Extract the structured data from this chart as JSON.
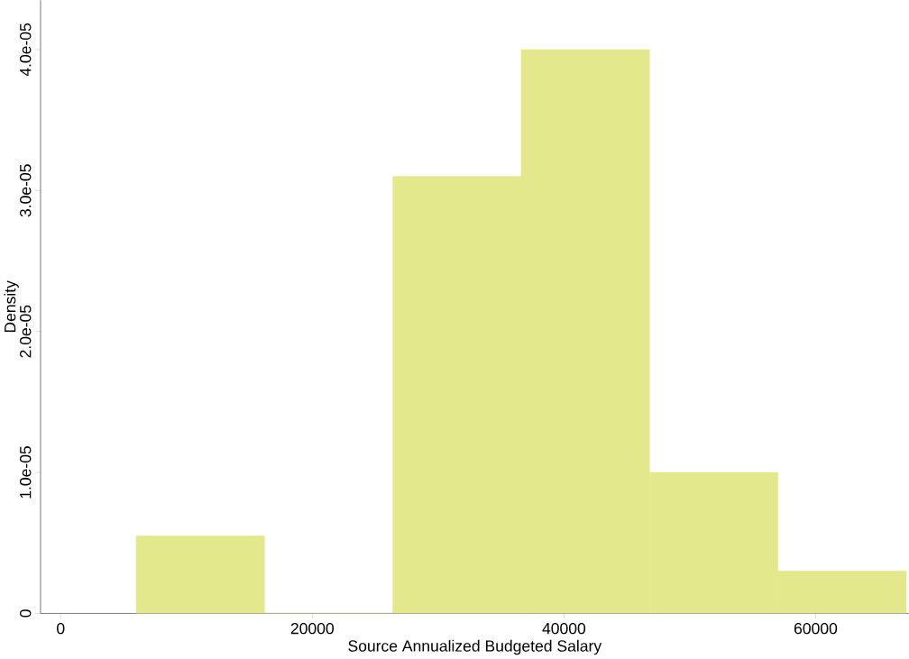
{
  "chart_data": {
    "type": "histogram",
    "xlabel": "Source Annualized Budgeted Salary",
    "ylabel": "Density",
    "bins": [
      6000,
      16200,
      26400,
      36600,
      46800,
      57000,
      67200
    ],
    "values": [
      5.5e-06,
      0,
      3.1e-05,
      4e-05,
      1e-05,
      3e-06
    ],
    "color": "#e4e88c",
    "xlim": [
      -1600,
      67400
    ],
    "ylim": [
      0,
      4.35e-05
    ],
    "xticks": [
      0,
      20000,
      40000,
      60000
    ],
    "yticks": [
      0,
      {
        "value": 1e-05,
        "label": "1.0e-05"
      },
      {
        "value": 2e-05,
        "label": "2.0e-05"
      },
      {
        "value": 3e-05,
        "label": "3.0e-05"
      },
      {
        "value": 4e-05,
        "label": "4.0e-05"
      }
    ]
  }
}
